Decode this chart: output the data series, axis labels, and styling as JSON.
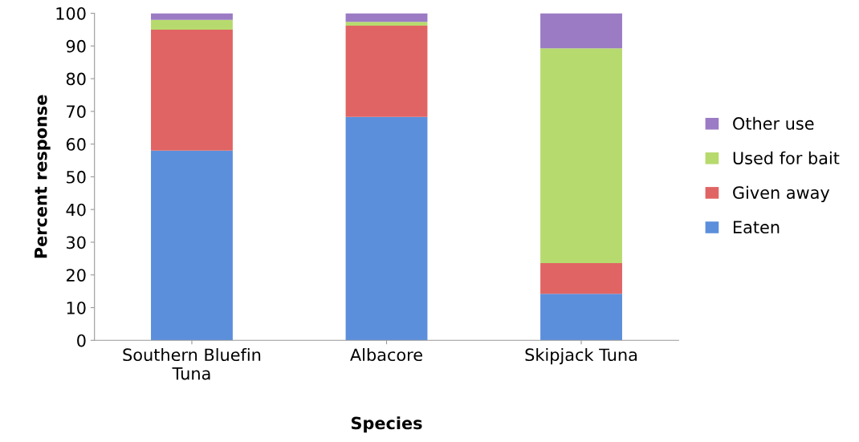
{
  "chart_data": {
    "type": "bar",
    "stacked": true,
    "xlabel": "Species",
    "ylabel": "Percent response",
    "categories": [
      "Southern Bluefin\nTuna",
      "Albacore",
      "Skipjack Tuna"
    ],
    "series": [
      {
        "name": "Eaten",
        "color": "#5b8fdc",
        "values": [
          58,
          68.3,
          14.2
        ]
      },
      {
        "name": "Given away",
        "color": "#e06464",
        "values": [
          37,
          27.9,
          9.4
        ]
      },
      {
        "name": "Used for bait",
        "color": "#b7da6e",
        "values": [
          3,
          1.2,
          65.7
        ]
      },
      {
        "name": "Other use",
        "color": "#9b7bc4",
        "values": [
          2,
          2.6,
          10.7
        ]
      }
    ],
    "ylim": [
      0,
      100
    ],
    "yticks": [
      0,
      10,
      20,
      30,
      40,
      50,
      60,
      70,
      80,
      90,
      100
    ],
    "grid": false,
    "legend": "right"
  }
}
